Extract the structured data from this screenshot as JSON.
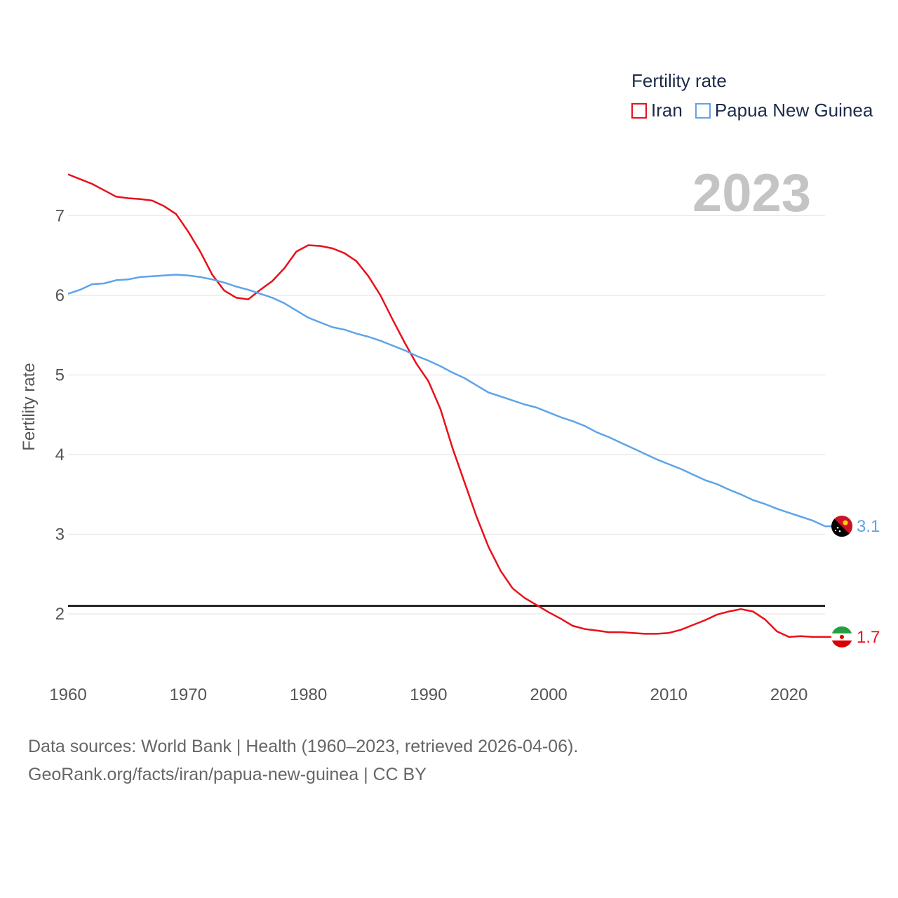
{
  "legend": {
    "title": "Fertility rate",
    "items": [
      {
        "label": "Iran",
        "color": "#e8101a"
      },
      {
        "label": "Papua New Guinea",
        "color": "#5ea4e8"
      }
    ]
  },
  "year_label": "2023",
  "source": {
    "line1": "Data sources: World Bank | Health (1960–2023, retrieved 2026-04-06).",
    "line2": "GeoRank.org/facts/iran/papua-new-guinea | CC BY"
  },
  "chart_data": {
    "type": "line",
    "title": "Fertility rate",
    "xlabel": "",
    "ylabel": "Fertility rate",
    "xlim": [
      1960,
      2023
    ],
    "ylim": [
      1.3,
      7.6
    ],
    "xticks": [
      1960,
      1970,
      1980,
      1990,
      2000,
      2010,
      2020
    ],
    "yticks": [
      2,
      3,
      4,
      5,
      6,
      7
    ],
    "grid": true,
    "reference_line": {
      "y": 2.1,
      "color": "#000000"
    },
    "series": [
      {
        "name": "Iran",
        "color": "#e8101a",
        "end_label": "1.7",
        "x": [
          1960,
          1961,
          1962,
          1963,
          1964,
          1965,
          1966,
          1967,
          1968,
          1969,
          1970,
          1971,
          1972,
          1973,
          1974,
          1975,
          1976,
          1977,
          1978,
          1979,
          1980,
          1981,
          1982,
          1983,
          1984,
          1985,
          1986,
          1987,
          1988,
          1989,
          1990,
          1991,
          1992,
          1993,
          1994,
          1995,
          1996,
          1997,
          1998,
          1999,
          2000,
          2001,
          2002,
          2003,
          2004,
          2005,
          2006,
          2007,
          2008,
          2009,
          2010,
          2011,
          2012,
          2013,
          2014,
          2015,
          2016,
          2017,
          2018,
          2019,
          2020,
          2021,
          2022,
          2023
        ],
        "values": [
          7.52,
          7.46,
          7.4,
          7.32,
          7.24,
          7.22,
          7.21,
          7.19,
          7.12,
          7.02,
          6.8,
          6.55,
          6.26,
          6.06,
          5.97,
          5.95,
          6.07,
          6.18,
          6.34,
          6.55,
          6.63,
          6.62,
          6.59,
          6.53,
          6.43,
          6.24,
          6.0,
          5.7,
          5.41,
          5.14,
          4.92,
          4.57,
          4.08,
          3.65,
          3.22,
          2.84,
          2.54,
          2.32,
          2.2,
          2.11,
          2.02,
          1.94,
          1.85,
          1.81,
          1.79,
          1.77,
          1.77,
          1.76,
          1.75,
          1.75,
          1.76,
          1.8,
          1.86,
          1.92,
          1.99,
          2.03,
          2.06,
          2.03,
          1.93,
          1.78,
          1.71,
          1.72,
          1.71,
          1.71
        ]
      },
      {
        "name": "Papua New Guinea",
        "color": "#5ea4e8",
        "end_label": "3.1",
        "x": [
          1960,
          1961,
          1962,
          1963,
          1964,
          1965,
          1966,
          1967,
          1968,
          1969,
          1970,
          1971,
          1972,
          1973,
          1974,
          1975,
          1976,
          1977,
          1978,
          1979,
          1980,
          1981,
          1982,
          1983,
          1984,
          1985,
          1986,
          1987,
          1988,
          1989,
          1990,
          1991,
          1992,
          1993,
          1994,
          1995,
          1996,
          1997,
          1998,
          1999,
          2000,
          2001,
          2002,
          2003,
          2004,
          2005,
          2006,
          2007,
          2008,
          2009,
          2010,
          2011,
          2012,
          2013,
          2014,
          2015,
          2016,
          2017,
          2018,
          2019,
          2020,
          2021,
          2022,
          2023
        ],
        "values": [
          6.02,
          6.07,
          6.14,
          6.15,
          6.19,
          6.2,
          6.23,
          6.24,
          6.25,
          6.26,
          6.25,
          6.23,
          6.2,
          6.16,
          6.11,
          6.07,
          6.02,
          5.97,
          5.9,
          5.81,
          5.72,
          5.66,
          5.6,
          5.57,
          5.52,
          5.48,
          5.43,
          5.37,
          5.31,
          5.24,
          5.18,
          5.11,
          5.03,
          4.96,
          4.87,
          4.78,
          4.73,
          4.68,
          4.63,
          4.59,
          4.53,
          4.47,
          4.42,
          4.36,
          4.28,
          4.22,
          4.15,
          4.08,
          4.01,
          3.94,
          3.88,
          3.82,
          3.75,
          3.68,
          3.63,
          3.56,
          3.5,
          3.43,
          3.38,
          3.32,
          3.27,
          3.22,
          3.17,
          3.1
        ]
      }
    ]
  }
}
